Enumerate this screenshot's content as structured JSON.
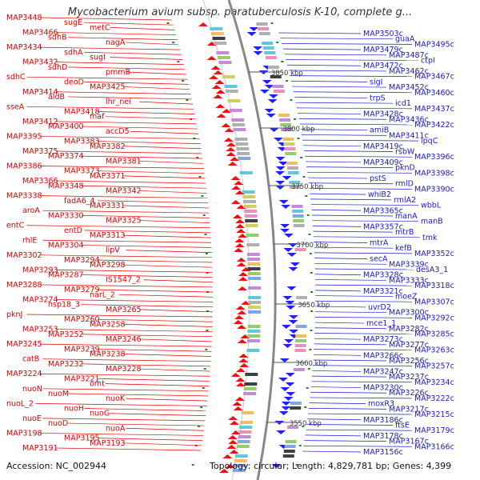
{
  "title": "Mycobacterium avium subsp. paratuberculosis K-10, complete g...",
  "accession": "Accession: NC_002944",
  "topology": "Topology: circular; Length: 4,829,781 bp; Genes: 4,399",
  "colors": {
    "left_labels": "#dd0000",
    "right_labels": "#1a1acc",
    "forward_strand": "#ee1111",
    "reverse_strand": "#2222ee",
    "backbone": "#888888",
    "ticks": "#228822"
  },
  "scale_marks": [
    "3850 kbp",
    "3800 kbp",
    "3750 kbp",
    "3700 kbp",
    "3650 kbp",
    "3600 kbp",
    "3550 kbp"
  ],
  "left_labels": [
    "MAP3448",
    "sugE",
    "metC",
    "MAP3466",
    "sdhB",
    "nagA",
    "MAP3434",
    "sdhA",
    "sugI",
    "MAP3432",
    "sdhD",
    "pmmB",
    "sdhC",
    "deoD",
    "MAP3425",
    "MAP3414",
    "aldB",
    "lhr_nei",
    "sseA",
    "MAP3418",
    "maf",
    "MAP3412",
    "MAP3400",
    "accD5",
    "MAP3395",
    "MAP3383",
    "MAP3382",
    "MAP3375",
    "MAP3374",
    "MAP3381",
    "MAP3386",
    "MAP3373",
    "MAP3371",
    "MAP3366",
    "MAP3348",
    "MAP3342",
    "MAP3338",
    "fadA6_4",
    "MAP3331",
    "aroA",
    "MAP3330",
    "MAP3325",
    "entC",
    "entD",
    "MAP3313",
    "rhlE",
    "MAP3304",
    "lipV",
    "MAP3302",
    "MAP3294",
    "MAP3298",
    "MAP3293",
    "MAP3287",
    "IS1547_2",
    "MAP3288",
    "MAP3279",
    "narL_2",
    "MAP3274",
    "hsp18_3",
    "MAP3265",
    "pknJ",
    "MAP3260",
    "MAP3258",
    "MAP3253",
    "MAP3252",
    "MAP3246",
    "MAP3245",
    "MAP3239",
    "MAP3238",
    "catB",
    "MAP3232",
    "MAP3228",
    "MAP3224",
    "MAP3221",
    "omt",
    "nuoN",
    "nuoM",
    "nuoK",
    "nuoL_2",
    "nuoH",
    "nuoG",
    "nuoE",
    "nuoD",
    "nuoA",
    "MAP3198",
    "MAP3195",
    "MAP3193",
    "MAP3191"
  ],
  "right_labels": [
    "MAP3503c",
    "guaA",
    "MAP3495c",
    "MAP3479c",
    "MAP3487c",
    "ctpI",
    "MAP3472c",
    "MAP3462c",
    "MAP3467c",
    "sigI",
    "MAP3452c",
    "MAP3460c",
    "trpS",
    "icd1",
    "MAP3437c",
    "MAP3428c",
    "MAP3436c",
    "MAP3422c",
    "amiB",
    "MAP3411c",
    "lpqC",
    "MAP3419c",
    "rsbW",
    "MAP3396c",
    "MAP3409c",
    "pknD",
    "MAP3398c",
    "pstS",
    "rmlD",
    "MAP3390c",
    "whiB2",
    "rmlA2",
    "wbbL",
    "MAP3365c",
    "manA",
    "manB",
    "MAP3357c",
    "mtrB",
    "tmk",
    "mtrA",
    "kefB",
    "MAP3352c",
    "secA",
    "MAP3339c",
    "desA3_1",
    "MAP3328c",
    "MAP3333c",
    "MAP3318c",
    "MAP3321c",
    "moeZ",
    "MAP3307c",
    "uvrD2",
    "MAP3300c",
    "MAP3292c",
    "mce1_1",
    "MAP3282c",
    "MAP3285c",
    "MAP3273c",
    "MAP3277c",
    "MAP3263c",
    "MAP3266c",
    "MAP3256c",
    "MAP3257c",
    "MAP3247c",
    "MAP3237c",
    "MAP3234c",
    "MAP3230c",
    "MAP3226c",
    "MAP3222c",
    "moxR3",
    "MAP3217c",
    "MAP3215c",
    "MAP3186c",
    "ftsE",
    "MAP3179c",
    "MAP3178c",
    "MAP3167c",
    "MAP3166c",
    "MAP3156c"
  ]
}
